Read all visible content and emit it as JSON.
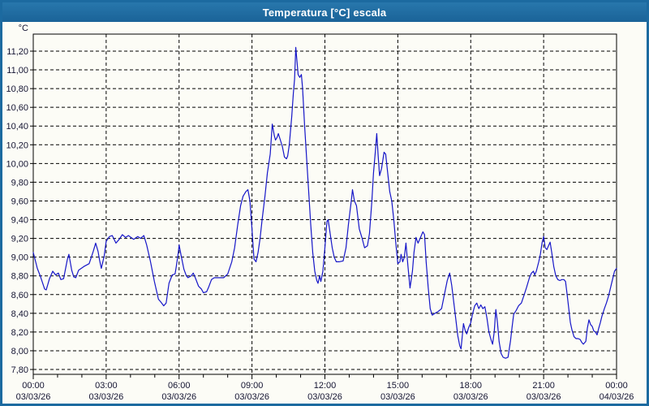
{
  "window": {
    "title": "Temperatura [°C] escala"
  },
  "colors": {
    "titlebar": "#1C6AA0",
    "window_border": "#1C6AA0",
    "background": "#FCFCF6",
    "grid": "#000000",
    "axis": "#000000",
    "tick_text": "#141432",
    "line": "#1616C8"
  },
  "chart_data": {
    "type": "line",
    "title": "Temperatura [°C] escala",
    "ylabel": "°C",
    "xlabel": "",
    "grid": true,
    "legend_position": "none",
    "ylim": [
      7.8,
      11.2
    ],
    "ytick_step": 0.2,
    "y_tick_labels": [
      "7,80",
      "8,00",
      "8,20",
      "8,40",
      "8,60",
      "8,80",
      "9,00",
      "9,20",
      "9,40",
      "9,60",
      "9,80",
      "10,00",
      "10,20",
      "10,40",
      "10,60",
      "10,80",
      "11,00",
      "11,20"
    ],
    "x_range_minutes": [
      0,
      1440
    ],
    "x_major_step_minutes": 180,
    "x_minor_step_minutes": 60,
    "x_ticks": [
      {
        "time": "00:00",
        "date": "03/03/26"
      },
      {
        "time": "03:00",
        "date": "03/03/26"
      },
      {
        "time": "06:00",
        "date": "03/03/26"
      },
      {
        "time": "09:00",
        "date": "03/03/26"
      },
      {
        "time": "12:00",
        "date": "03/03/26"
      },
      {
        "time": "15:00",
        "date": "03/03/26"
      },
      {
        "time": "18:00",
        "date": "03/03/26"
      },
      {
        "time": "21:00",
        "date": "03/03/26"
      },
      {
        "time": "00:00",
        "date": "04/03/26"
      }
    ],
    "series": [
      {
        "name": "Temperatura",
        "color": "#1616C8",
        "points": [
          [
            0,
            9.05
          ],
          [
            10,
            8.88
          ],
          [
            18,
            8.79
          ],
          [
            28,
            8.66
          ],
          [
            32,
            8.65
          ],
          [
            40,
            8.77
          ],
          [
            48,
            8.85
          ],
          [
            55,
            8.81
          ],
          [
            62,
            8.83
          ],
          [
            68,
            8.76
          ],
          [
            75,
            8.77
          ],
          [
            84,
            8.97
          ],
          [
            88,
            9.03
          ],
          [
            95,
            8.86
          ],
          [
            100,
            8.79
          ],
          [
            105,
            8.78
          ],
          [
            112,
            8.86
          ],
          [
            125,
            8.9
          ],
          [
            138,
            8.93
          ],
          [
            148,
            9.06
          ],
          [
            154,
            9.15
          ],
          [
            160,
            9.06
          ],
          [
            164,
            8.96
          ],
          [
            168,
            8.88
          ],
          [
            175,
            9.01
          ],
          [
            180,
            9.17
          ],
          [
            188,
            9.22
          ],
          [
            195,
            9.23
          ],
          [
            204,
            9.15
          ],
          [
            212,
            9.19
          ],
          [
            220,
            9.24
          ],
          [
            228,
            9.21
          ],
          [
            235,
            9.23
          ],
          [
            248,
            9.19
          ],
          [
            258,
            9.22
          ],
          [
            265,
            9.2
          ],
          [
            273,
            9.23
          ],
          [
            280,
            9.13
          ],
          [
            289,
            8.96
          ],
          [
            299,
            8.74
          ],
          [
            309,
            8.55
          ],
          [
            315,
            8.52
          ],
          [
            322,
            8.48
          ],
          [
            328,
            8.51
          ],
          [
            335,
            8.72
          ],
          [
            343,
            8.81
          ],
          [
            350,
            8.82
          ],
          [
            353,
            8.9
          ],
          [
            358,
            9.05
          ],
          [
            360,
            9.13
          ],
          [
            365,
            9.02
          ],
          [
            372,
            8.87
          ],
          [
            378,
            8.8
          ],
          [
            382,
            8.78
          ],
          [
            390,
            8.8
          ],
          [
            395,
            8.83
          ],
          [
            400,
            8.78
          ],
          [
            408,
            8.69
          ],
          [
            415,
            8.66
          ],
          [
            420,
            8.62
          ],
          [
            428,
            8.63
          ],
          [
            433,
            8.68
          ],
          [
            440,
            8.76
          ],
          [
            447,
            8.78
          ],
          [
            455,
            8.78
          ],
          [
            470,
            8.78
          ],
          [
            480,
            8.82
          ],
          [
            490,
            8.95
          ],
          [
            497,
            9.1
          ],
          [
            505,
            9.35
          ],
          [
            512,
            9.55
          ],
          [
            518,
            9.65
          ],
          [
            525,
            9.7
          ],
          [
            530,
            9.72
          ],
          [
            535,
            9.6
          ],
          [
            540,
            9.3
          ],
          [
            545,
            8.98
          ],
          [
            550,
            8.95
          ],
          [
            555,
            9.05
          ],
          [
            560,
            9.2
          ],
          [
            565,
            9.4
          ],
          [
            572,
            9.65
          ],
          [
            578,
            9.9
          ],
          [
            585,
            10.1
          ],
          [
            590,
            10.42
          ],
          [
            595,
            10.3
          ],
          [
            598,
            10.25
          ],
          [
            602,
            10.28
          ],
          [
            605,
            10.32
          ],
          [
            610,
            10.25
          ],
          [
            615,
            10.18
          ],
          [
            620,
            10.07
          ],
          [
            625,
            10.05
          ],
          [
            628,
            10.08
          ],
          [
            632,
            10.2
          ],
          [
            638,
            10.5
          ],
          [
            642,
            10.75
          ],
          [
            645,
            10.9
          ],
          [
            648,
            11.24
          ],
          [
            651,
            11.1
          ],
          [
            654,
            10.95
          ],
          [
            658,
            10.92
          ],
          [
            662,
            10.95
          ],
          [
            665,
            10.8
          ],
          [
            670,
            10.4
          ],
          [
            675,
            10.05
          ],
          [
            680,
            9.7
          ],
          [
            685,
            9.35
          ],
          [
            690,
            9.05
          ],
          [
            695,
            8.85
          ],
          [
            700,
            8.75
          ],
          [
            703,
            8.72
          ],
          [
            707,
            8.8
          ],
          [
            710,
            8.74
          ],
          [
            715,
            8.85
          ],
          [
            720,
            9.1
          ],
          [
            725,
            9.38
          ],
          [
            728,
            9.4
          ],
          [
            733,
            9.25
          ],
          [
            738,
            9.1
          ],
          [
            743,
            9.0
          ],
          [
            748,
            8.95
          ],
          [
            755,
            8.95
          ],
          [
            765,
            8.96
          ],
          [
            772,
            9.1
          ],
          [
            778,
            9.35
          ],
          [
            785,
            9.6
          ],
          [
            788,
            9.72
          ],
          [
            793,
            9.6
          ],
          [
            798,
            9.55
          ],
          [
            805,
            9.3
          ],
          [
            812,
            9.2
          ],
          [
            818,
            9.1
          ],
          [
            825,
            9.12
          ],
          [
            830,
            9.25
          ],
          [
            836,
            9.6
          ],
          [
            840,
            9.9
          ],
          [
            845,
            10.15
          ],
          [
            848,
            10.32
          ],
          [
            852,
            10.05
          ],
          [
            855,
            9.87
          ],
          [
            860,
            9.95
          ],
          [
            866,
            10.12
          ],
          [
            870,
            10.1
          ],
          [
            875,
            9.9
          ],
          [
            880,
            9.7
          ],
          [
            885,
            9.6
          ],
          [
            890,
            9.4
          ],
          [
            895,
            9.15
          ],
          [
            900,
            8.93
          ],
          [
            905,
            8.95
          ],
          [
            908,
            9.03
          ],
          [
            912,
            8.95
          ],
          [
            916,
            9.0
          ],
          [
            920,
            9.15
          ],
          [
            925,
            8.9
          ],
          [
            930,
            8.67
          ],
          [
            936,
            8.85
          ],
          [
            940,
            9.05
          ],
          [
            945,
            9.21
          ],
          [
            950,
            9.15
          ],
          [
            955,
            9.2
          ],
          [
            962,
            9.27
          ],
          [
            966,
            9.24
          ],
          [
            970,
            8.95
          ],
          [
            975,
            8.68
          ],
          [
            980,
            8.45
          ],
          [
            985,
            8.38
          ],
          [
            992,
            8.4
          ],
          [
            1000,
            8.42
          ],
          [
            1008,
            8.45
          ],
          [
            1015,
            8.6
          ],
          [
            1022,
            8.75
          ],
          [
            1028,
            8.83
          ],
          [
            1033,
            8.7
          ],
          [
            1040,
            8.45
          ],
          [
            1048,
            8.16
          ],
          [
            1053,
            8.05
          ],
          [
            1056,
            8.02
          ],
          [
            1060,
            8.2
          ],
          [
            1062,
            8.29
          ],
          [
            1066,
            8.22
          ],
          [
            1070,
            8.18
          ],
          [
            1075,
            8.25
          ],
          [
            1080,
            8.3
          ],
          [
            1085,
            8.4
          ],
          [
            1090,
            8.48
          ],
          [
            1095,
            8.51
          ],
          [
            1100,
            8.45
          ],
          [
            1105,
            8.49
          ],
          [
            1110,
            8.45
          ],
          [
            1115,
            8.47
          ],
          [
            1120,
            8.35
          ],
          [
            1125,
            8.2
          ],
          [
            1130,
            8.12
          ],
          [
            1134,
            8.07
          ],
          [
            1138,
            8.2
          ],
          [
            1142,
            8.44
          ],
          [
            1146,
            8.3
          ],
          [
            1150,
            8.1
          ],
          [
            1155,
            7.97
          ],
          [
            1160,
            7.93
          ],
          [
            1166,
            7.92
          ],
          [
            1172,
            7.93
          ],
          [
            1178,
            8.1
          ],
          [
            1182,
            8.25
          ],
          [
            1186,
            8.39
          ],
          [
            1192,
            8.43
          ],
          [
            1198,
            8.48
          ],
          [
            1205,
            8.51
          ],
          [
            1212,
            8.6
          ],
          [
            1218,
            8.68
          ],
          [
            1225,
            8.78
          ],
          [
            1230,
            8.83
          ],
          [
            1235,
            8.85
          ],
          [
            1238,
            8.81
          ],
          [
            1242,
            8.85
          ],
          [
            1248,
            8.95
          ],
          [
            1252,
            9.03
          ],
          [
            1256,
            9.15
          ],
          [
            1260,
            9.22
          ],
          [
            1264,
            9.1
          ],
          [
            1268,
            9.08
          ],
          [
            1272,
            9.12
          ],
          [
            1276,
            9.16
          ],
          [
            1280,
            9.05
          ],
          [
            1285,
            8.9
          ],
          [
            1290,
            8.8
          ],
          [
            1295,
            8.76
          ],
          [
            1300,
            8.75
          ],
          [
            1305,
            8.76
          ],
          [
            1310,
            8.76
          ],
          [
            1314,
            8.74
          ],
          [
            1318,
            8.6
          ],
          [
            1322,
            8.45
          ],
          [
            1326,
            8.3
          ],
          [
            1330,
            8.22
          ],
          [
            1335,
            8.15
          ],
          [
            1340,
            8.13
          ],
          [
            1345,
            8.13
          ],
          [
            1350,
            8.12
          ],
          [
            1354,
            8.09
          ],
          [
            1358,
            8.07
          ],
          [
            1364,
            8.1
          ],
          [
            1368,
            8.24
          ],
          [
            1372,
            8.33
          ],
          [
            1376,
            8.28
          ],
          [
            1380,
            8.26
          ],
          [
            1384,
            8.21
          ],
          [
            1388,
            8.2
          ],
          [
            1392,
            8.17
          ],
          [
            1396,
            8.24
          ],
          [
            1400,
            8.3
          ],
          [
            1404,
            8.37
          ],
          [
            1410,
            8.45
          ],
          [
            1415,
            8.51
          ],
          [
            1420,
            8.58
          ],
          [
            1425,
            8.67
          ],
          [
            1430,
            8.76
          ],
          [
            1435,
            8.85
          ],
          [
            1440,
            8.88
          ]
        ]
      }
    ]
  }
}
